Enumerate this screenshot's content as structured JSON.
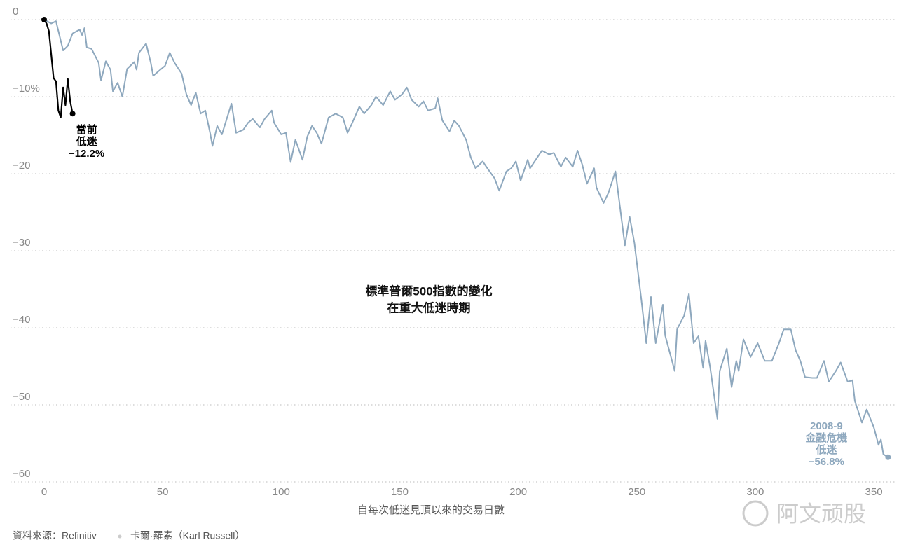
{
  "chart_data": {
    "type": "line",
    "title": [
      "標準普爾500指數的變化",
      "在重大低迷時期"
    ],
    "x_label": "自每次低迷見頂以來的交易日數",
    "source": [
      "資料來源：Refinitiv",
      "卡爾·羅素（Karl Russell）"
    ],
    "watermark": "阿文顽股",
    "xlim": [
      0,
      358
    ],
    "xticks": [
      0,
      50,
      100,
      150,
      200,
      250,
      300,
      350
    ],
    "ylim": [
      -61,
      1
    ],
    "yticks": [
      0,
      {
        "value": -10,
        "label": "−10%"
      },
      {
        "value": -20,
        "label": "−20"
      },
      {
        "value": -30,
        "label": "−30"
      },
      {
        "value": -40,
        "label": "−40"
      },
      {
        "value": -50,
        "label": "−50"
      },
      {
        "value": -60,
        "label": "−60"
      }
    ],
    "grid": true,
    "series": [
      {
        "name": "2008-9 金融危機低迷",
        "color": "#8ea8be",
        "label": [
          "2008-9",
          "金融危機",
          "低迷",
          "−56.8%"
        ],
        "x": [
          0,
          3,
          5,
          8,
          10,
          12,
          15,
          16,
          17,
          18,
          20,
          23,
          24,
          26,
          28,
          29,
          31,
          33,
          35,
          38,
          39,
          40,
          43,
          45,
          46,
          49,
          51,
          53,
          55,
          58,
          60,
          62,
          64,
          66,
          68,
          70,
          71,
          73,
          75,
          77,
          79,
          81,
          84,
          86,
          88,
          91,
          93,
          96,
          97,
          100,
          102,
          104,
          106,
          109,
          111,
          113,
          115,
          117,
          120,
          123,
          126,
          128,
          130,
          133,
          135,
          138,
          140,
          143,
          146,
          148,
          151,
          153,
          155,
          158,
          160,
          162,
          165,
          166,
          168,
          171,
          173,
          175,
          178,
          180,
          182,
          185,
          187,
          190,
          192,
          195,
          197,
          199,
          201,
          204,
          205,
          208,
          210,
          213,
          215,
          218,
          220,
          223,
          225,
          227,
          229,
          232,
          233,
          236,
          238,
          241,
          245,
          247,
          249,
          252,
          254,
          256,
          258,
          261,
          262,
          266,
          267,
          270,
          272,
          274,
          276,
          278,
          279,
          281,
          284,
          285,
          288,
          290,
          292,
          293,
          295,
          298,
          301,
          304,
          307,
          310,
          312,
          315,
          317,
          319,
          321,
          324,
          326,
          329,
          331,
          334,
          336,
          339,
          341,
          342,
          345,
          347,
          350,
          352,
          353,
          354,
          356
        ],
        "values": [
          0,
          -0.5,
          -0.2,
          -4,
          -3.4,
          -1.8,
          -1.3,
          -2,
          -1.1,
          -3.6,
          -3.8,
          -5.6,
          -7.9,
          -5.4,
          -6.5,
          -9.3,
          -8.2,
          -10,
          -6.4,
          -5.5,
          -6.5,
          -4.3,
          -3.1,
          -5.6,
          -7.3,
          -6.5,
          -6,
          -4.3,
          -5.6,
          -7,
          -9.7,
          -11.1,
          -9.5,
          -12.2,
          -11.8,
          -14.7,
          -16.4,
          -13.8,
          -14.9,
          -12.9,
          -10.9,
          -14.7,
          -14.3,
          -13.4,
          -12.9,
          -14,
          -12.9,
          -11.8,
          -13.4,
          -14.9,
          -14.7,
          -18.5,
          -15.6,
          -18.2,
          -15.2,
          -13.8,
          -14.7,
          -16.1,
          -12.7,
          -12.2,
          -12.7,
          -14.7,
          -13.4,
          -11.3,
          -12.2,
          -11.1,
          -10,
          -11.1,
          -9.3,
          -10.4,
          -9.7,
          -8.8,
          -10.4,
          -11.3,
          -10.6,
          -11.8,
          -11.5,
          -10.2,
          -13.1,
          -14.5,
          -13.1,
          -13.8,
          -15.6,
          -17.9,
          -19.3,
          -18.4,
          -19.3,
          -20.6,
          -22.2,
          -19.7,
          -19.3,
          -18.4,
          -20.9,
          -18.2,
          -19.3,
          -17.9,
          -17,
          -17.5,
          -17.3,
          -19.1,
          -17.9,
          -19.1,
          -17,
          -18.8,
          -21.3,
          -19.3,
          -21.8,
          -23.8,
          -22.5,
          -19.7,
          -29.3,
          -25.6,
          -29,
          -36.5,
          -42,
          -36,
          -42,
          -37,
          -41,
          -45.6,
          -40.2,
          -38.4,
          -35.6,
          -42,
          -41.1,
          -45.2,
          -41.7,
          -45.2,
          -51.8,
          -45.6,
          -42.7,
          -47.7,
          -44.3,
          -45.6,
          -41.5,
          -43.8,
          -42,
          -44.3,
          -44.3,
          -42,
          -40.2,
          -40.2,
          -42.9,
          -44.3,
          -46.4,
          -46.5,
          -46.5,
          -44.3,
          -47,
          -45.6,
          -44.5,
          -47,
          -46.8,
          -49.5,
          -52.3,
          -50.6,
          -52.9,
          -55.2,
          -54.5,
          -56.4,
          -56.8
        ]
      },
      {
        "name": "當前低迷",
        "color": "#000000",
        "label": [
          "當前",
          "低迷",
          "−12.2%"
        ],
        "x": [
          0,
          1,
          2,
          3,
          4,
          5,
          6,
          7,
          8,
          9,
          10,
          11,
          12
        ],
        "values": [
          0,
          -0.5,
          -1.5,
          -4.5,
          -7.6,
          -8,
          -11.8,
          -12.7,
          -8.8,
          -11.1,
          -7.7,
          -10.6,
          -12.2
        ]
      }
    ]
  }
}
